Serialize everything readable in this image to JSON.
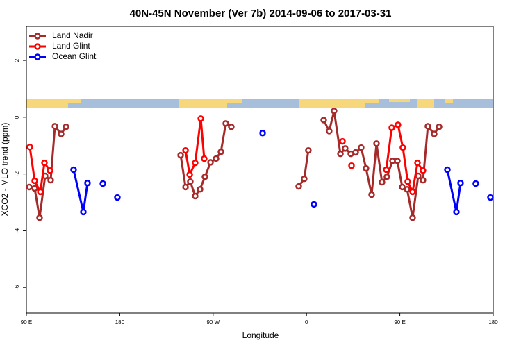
{
  "chart_data": {
    "type": "line",
    "title": "40N-45N November (Ver 7b)   2014-09-06 to 2017-03-31",
    "x_label": "Longitude",
    "y_label": "XCO2 - MLO trend (ppm)",
    "xlim": [
      90,
      540
    ],
    "ylim": [
      -6.9,
      3.2
    ],
    "xticks": [
      {
        "value": 90,
        "label": "90 E"
      },
      180,
      {
        "value": 270,
        "label": "90 W"
      },
      {
        "value": 360,
        "label": "0"
      },
      {
        "value": 450,
        "label": "90 E"
      },
      {
        "value": 540,
        "label": "180"
      }
    ],
    "yticks": [
      2,
      0,
      -2,
      -4,
      -6
    ],
    "legend": "top-left",
    "series": [
      {
        "name": "Land Nadir",
        "color": "#a52a2a",
        "x": [
          92.7,
          98.0,
          102.7,
          108.1,
          113.4,
          117.5,
          123.5,
          128.2,
          null,
          238.7,
          243.4,
          248.0,
          252.7,
          257.4,
          262.1,
          267.5,
          272.8,
          277.5,
          282.2,
          287.5,
          null,
          352.5,
          357.8,
          361.8,
          null,
          376.6,
          381.9,
          386.6,
          392.7,
          397.3,
          402.7,
          407.4,
          412.7,
          417.4,
          422.8,
          427.5,
          432.8,
          437.5,
          442.9,
          447.6,
          452.3,
          457.0,
          462.3,
          467.7,
          472.3,
          477.0,
          483.1,
          487.8
        ],
        "values": [
          -2.46,
          -2.51,
          -3.54,
          -2.07,
          -2.22,
          -0.32,
          -0.59,
          -0.34,
          null,
          -1.34,
          -2.46,
          -2.27,
          -2.78,
          -2.54,
          -2.1,
          -1.59,
          -1.46,
          -1.22,
          -0.22,
          -0.34,
          null,
          -2.44,
          -2.17,
          -1.17,
          null,
          -0.1,
          -0.49,
          0.22,
          -1.29,
          -1.1,
          -1.29,
          -1.24,
          -1.07,
          -1.8,
          -2.73,
          -0.93,
          -2.29,
          -2.1,
          -1.54,
          -1.54,
          -2.46,
          -2.54,
          -3.54,
          -2.07,
          -2.22,
          -0.32,
          -0.59,
          -0.34
        ]
      },
      {
        "name": "Land Glint",
        "color": "#ff0000",
        "x": [
          93.3,
          98.0,
          103.4,
          107.4,
          112.8,
          null,
          243.4,
          247.4,
          252.7,
          258.1,
          261.4,
          null,
          394.7,
          null,
          403.4,
          null,
          436.9,
          442.2,
          448.2,
          452.9,
          457.6,
          462.3,
          467.0,
          472.3
        ],
        "values": [
          -1.05,
          -2.24,
          -2.63,
          -1.61,
          -1.88,
          null,
          -1.17,
          -2.02,
          -1.61,
          -0.05,
          -1.46,
          null,
          -0.85,
          null,
          -1.71,
          null,
          -1.85,
          -0.37,
          -0.27,
          -1.07,
          -2.27,
          -2.63,
          -1.61,
          -1.88
        ]
      },
      {
        "name": "Ocean Glint",
        "color": "#0000ff",
        "x": [
          135.5,
          144.9,
          148.9,
          null,
          163.7,
          null,
          177.7,
          null,
          317.7,
          null,
          367.2,
          null,
          495.8,
          504.5,
          508.5,
          null,
          523.2,
          null,
          537.3
        ],
        "values": [
          -1.85,
          -3.34,
          -2.32,
          null,
          -2.34,
          null,
          -2.83,
          null,
          -0.56,
          null,
          -3.07,
          null,
          -1.85,
          -3.34,
          -2.32,
          null,
          -2.34,
          null,
          -2.83
        ]
      }
    ]
  }
}
